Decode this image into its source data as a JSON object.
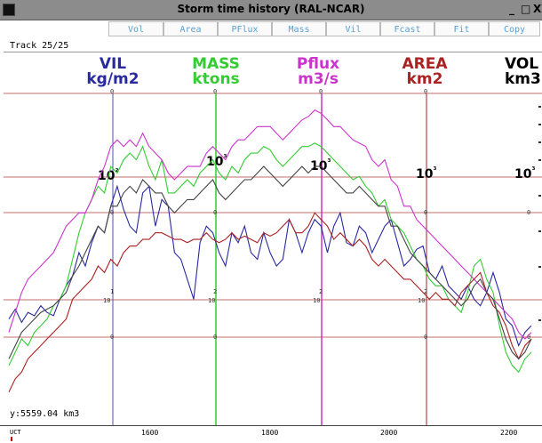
{
  "window": {
    "title": "Storm time history (RAL-NCAR)",
    "btn_minimize": "_",
    "btn_maximize": "□",
    "btn_close": "X"
  },
  "toolbar": {
    "buttons": [
      "Vol",
      "Area",
      "PFlux",
      "Mass",
      "Vil",
      "Fcast",
      "Fit",
      "Copy"
    ]
  },
  "track_label": "Track 25/25",
  "readout": "y:5559.04 km3",
  "colors": {
    "vil": "#2a2aa0",
    "mass": "#33cc33",
    "pflux": "#cc33cc",
    "area": "#aa2222",
    "vol": "#000000"
  },
  "chart_data": {
    "type": "line",
    "x_ticks": [
      "1600",
      "1800",
      "2000",
      "2200"
    ],
    "xlabel": "UCT",
    "x": [
      1400,
      1410,
      1420,
      1430,
      1440,
      1450,
      1460,
      1470,
      1480,
      1490,
      1500,
      1510,
      1520,
      1530,
      1540,
      1550,
      1560,
      1570,
      1580,
      1590,
      1600,
      1610,
      1620,
      1630,
      1640,
      1650,
      1660,
      1670,
      1680,
      1690,
      1700,
      1710,
      1720,
      1730,
      1740,
      1750,
      1760,
      1770,
      1780,
      1790,
      1800,
      1810,
      1820,
      1830,
      1840,
      1850,
      1860,
      1870,
      1880,
      1890,
      1900,
      1910,
      1920,
      1930,
      1940,
      1950,
      1960,
      1970,
      1980,
      1990,
      2000,
      2010,
      2020,
      2030,
      2040,
      2050,
      2060,
      2070,
      2080,
      2090,
      2100,
      2110,
      2120,
      2130,
      2140,
      2150,
      2160,
      2170,
      2180,
      2190,
      2200,
      2210,
      2220
    ],
    "series": [
      {
        "name": "VIL",
        "units": "kg/m2",
        "axis_marker": "10²",
        "color": "#2a2aa0",
        "values": [
          0.32,
          0.35,
          0.31,
          0.34,
          0.33,
          0.36,
          0.34,
          0.33,
          0.38,
          0.42,
          0.45,
          0.52,
          0.48,
          0.55,
          0.6,
          0.58,
          0.66,
          0.72,
          0.65,
          0.6,
          0.58,
          0.7,
          0.72,
          0.6,
          0.68,
          0.66,
          0.52,
          0.5,
          0.44,
          0.38,
          0.55,
          0.6,
          0.58,
          0.52,
          0.48,
          0.58,
          0.55,
          0.6,
          0.52,
          0.5,
          0.58,
          0.52,
          0.48,
          0.5,
          0.62,
          0.58,
          0.52,
          0.58,
          0.62,
          0.6,
          0.52,
          0.6,
          0.64,
          0.55,
          0.54,
          0.6,
          0.58,
          0.52,
          0.56,
          0.6,
          0.62,
          0.55,
          0.48,
          0.5,
          0.53,
          0.54,
          0.46,
          0.44,
          0.48,
          0.42,
          0.4,
          0.38,
          0.42,
          0.38,
          0.36,
          0.4,
          0.46,
          0.4,
          0.32,
          0.3,
          0.24,
          0.28,
          0.3
        ]
      },
      {
        "name": "MASS",
        "units": "ktons",
        "axis_marker": "10³",
        "color": "#33cc33",
        "values": [
          0.18,
          0.22,
          0.26,
          0.24,
          0.28,
          0.3,
          0.32,
          0.36,
          0.38,
          0.42,
          0.5,
          0.58,
          0.64,
          0.68,
          0.72,
          0.7,
          0.78,
          0.76,
          0.8,
          0.82,
          0.8,
          0.84,
          0.78,
          0.74,
          0.8,
          0.7,
          0.7,
          0.72,
          0.74,
          0.72,
          0.76,
          0.78,
          0.8,
          0.76,
          0.74,
          0.78,
          0.76,
          0.8,
          0.82,
          0.82,
          0.84,
          0.83,
          0.8,
          0.78,
          0.8,
          0.82,
          0.84,
          0.84,
          0.85,
          0.84,
          0.82,
          0.8,
          0.78,
          0.76,
          0.74,
          0.75,
          0.72,
          0.7,
          0.66,
          0.68,
          0.62,
          0.6,
          0.58,
          0.54,
          0.5,
          0.48,
          0.44,
          0.42,
          0.42,
          0.38,
          0.36,
          0.34,
          0.4,
          0.48,
          0.5,
          0.44,
          0.4,
          0.3,
          0.22,
          0.18,
          0.16,
          0.2,
          0.22
        ]
      },
      {
        "name": "Pflux",
        "units": "m3/s",
        "axis_marker": "10³",
        "color": "#cc33cc",
        "values": [
          0.28,
          0.34,
          0.4,
          0.44,
          0.46,
          0.48,
          0.5,
          0.52,
          0.56,
          0.6,
          0.62,
          0.64,
          0.64,
          0.68,
          0.74,
          0.78,
          0.84,
          0.86,
          0.84,
          0.86,
          0.84,
          0.88,
          0.84,
          0.82,
          0.8,
          0.76,
          0.74,
          0.76,
          0.78,
          0.78,
          0.78,
          0.82,
          0.84,
          0.82,
          0.8,
          0.84,
          0.86,
          0.86,
          0.88,
          0.9,
          0.9,
          0.9,
          0.88,
          0.86,
          0.88,
          0.9,
          0.92,
          0.93,
          0.95,
          0.94,
          0.92,
          0.9,
          0.9,
          0.88,
          0.86,
          0.85,
          0.84,
          0.8,
          0.78,
          0.8,
          0.74,
          0.72,
          0.66,
          0.66,
          0.62,
          0.6,
          0.58,
          0.56,
          0.54,
          0.52,
          0.5,
          0.48,
          0.46,
          0.44,
          0.42,
          0.4,
          0.38,
          0.36,
          0.34,
          0.32,
          0.28,
          0.26,
          0.28
        ]
      },
      {
        "name": "AREA",
        "units": "km2",
        "axis_marker": "10³",
        "color": "#aa2222",
        "values": [
          0.1,
          0.14,
          0.16,
          0.2,
          0.22,
          0.24,
          0.26,
          0.28,
          0.3,
          0.32,
          0.38,
          0.4,
          0.42,
          0.44,
          0.48,
          0.46,
          0.5,
          0.48,
          0.52,
          0.54,
          0.54,
          0.56,
          0.56,
          0.58,
          0.58,
          0.57,
          0.56,
          0.56,
          0.55,
          0.56,
          0.56,
          0.58,
          0.56,
          0.55,
          0.56,
          0.58,
          0.56,
          0.57,
          0.56,
          0.55,
          0.58,
          0.57,
          0.58,
          0.6,
          0.62,
          0.58,
          0.58,
          0.6,
          0.64,
          0.62,
          0.6,
          0.56,
          0.58,
          0.56,
          0.54,
          0.56,
          0.54,
          0.5,
          0.48,
          0.5,
          0.48,
          0.46,
          0.44,
          0.44,
          0.42,
          0.4,
          0.38,
          0.4,
          0.38,
          0.38,
          0.36,
          0.4,
          0.42,
          0.44,
          0.46,
          0.4,
          0.36,
          0.34,
          0.3,
          0.24,
          0.2,
          0.24,
          0.26
        ]
      },
      {
        "name": "VOL",
        "units": "km3",
        "axis_marker": "10³",
        "color": "#444444",
        "values": [
          0.2,
          0.24,
          0.28,
          0.3,
          0.32,
          0.34,
          0.35,
          0.36,
          0.38,
          0.4,
          0.45,
          0.48,
          0.52,
          0.56,
          0.6,
          0.58,
          0.66,
          0.66,
          0.7,
          0.72,
          0.7,
          0.74,
          0.72,
          0.7,
          0.7,
          0.66,
          0.64,
          0.66,
          0.68,
          0.68,
          0.7,
          0.72,
          0.74,
          0.7,
          0.68,
          0.7,
          0.72,
          0.74,
          0.74,
          0.76,
          0.78,
          0.76,
          0.74,
          0.72,
          0.74,
          0.76,
          0.78,
          0.76,
          0.78,
          0.78,
          0.76,
          0.74,
          0.72,
          0.7,
          0.7,
          0.72,
          0.7,
          0.68,
          0.66,
          0.66,
          0.6,
          0.6,
          0.56,
          0.52,
          0.5,
          0.48,
          0.46,
          0.44,
          0.42,
          0.4,
          0.38,
          0.36,
          0.38,
          0.42,
          0.44,
          0.4,
          0.38,
          0.32,
          0.26,
          0.22,
          0.2,
          0.22,
          0.26
        ]
      }
    ]
  }
}
